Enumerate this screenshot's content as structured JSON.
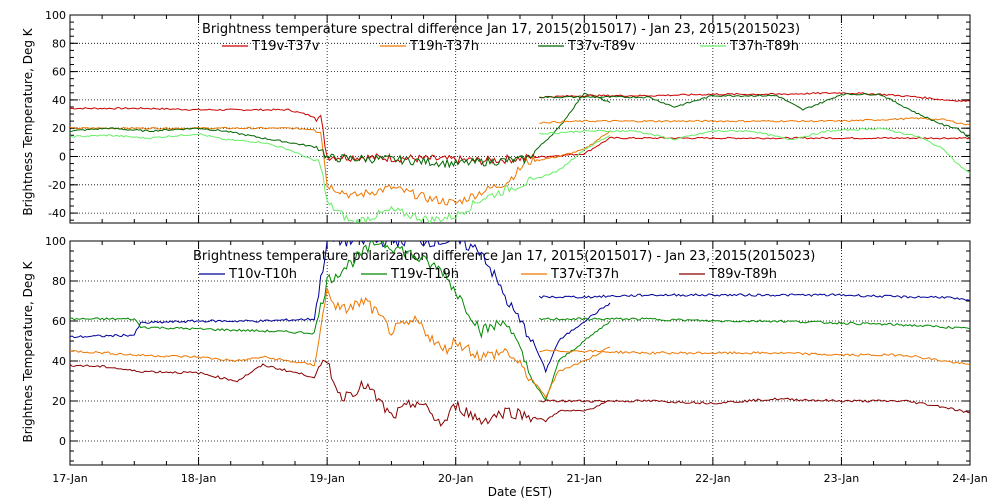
{
  "chart_data": [
    {
      "type": "line",
      "title": "Brightness temperature spectral difference      Jan 17, 2015(2015017) - Jan 23, 2015(2015023)",
      "ylabel": "Brightness Temperature, Deg K",
      "xlabel": "",
      "ylim": [
        -47,
        100
      ],
      "yticks": [
        -40,
        -20,
        0,
        20,
        40,
        60,
        80,
        100
      ],
      "ytick_labels": [
        "-40",
        "-20",
        "0",
        "20",
        "40",
        "60",
        "80",
        "100"
      ],
      "grid": true,
      "legend": "top",
      "series": [
        {
          "name": "T19v-T37v",
          "color": "#cc0000",
          "x": [
            0,
            0.3,
            0.6,
            1.0,
            1.4,
            1.7,
            1.95,
            2.0,
            2.5,
            2.9,
            3.2,
            3.55,
            4.0,
            4.2,
            4.3,
            4.5,
            4.8,
            5.5,
            6.0,
            6.3,
            6.6,
            6.9,
            7.0
          ],
          "y": [
            34,
            34,
            34,
            33,
            33,
            33,
            27,
            0,
            -1,
            -2,
            -3,
            -1,
            2,
            13,
            13,
            13,
            13,
            13,
            13,
            13,
            13,
            13,
            13
          ],
          "segments": [
            [
              0,
              4.4
            ],
            [
              4.4,
              7.0
            ]
          ]
        },
        {
          "name": "T19h-T37h",
          "color": "#ee7700",
          "x": [
            0,
            0.3,
            0.6,
            1.0,
            1.4,
            1.7,
            1.95,
            2.0,
            2.2,
            2.5,
            2.8,
            3.0,
            3.2,
            3.4,
            3.55,
            3.8,
            4.0,
            4.2
          ],
          "y": [
            20,
            20,
            20,
            20,
            20,
            20,
            19,
            -20,
            -28,
            -22,
            -30,
            -33,
            -25,
            -18,
            -4,
            0,
            5,
            18
          ],
          "segments": [
            [
              0,
              4.2
            ]
          ]
        },
        {
          "name": "T37v-T89v",
          "color": "#006600",
          "x": [
            0,
            0.3,
            0.6,
            1.0,
            1.2,
            1.5,
            1.7,
            1.95,
            2.0,
            2.5,
            3.0,
            3.55,
            3.8,
            4.0,
            4.1,
            4.2
          ],
          "y": [
            18,
            20,
            18,
            20,
            18,
            13,
            10,
            6,
            -1,
            -2,
            -5,
            -2,
            20,
            45,
            42,
            38
          ],
          "segments": [
            [
              0,
              4.2
            ]
          ]
        },
        {
          "name": "T37h-T89h",
          "color": "#66ee66",
          "x": [
            0,
            0.3,
            0.6,
            1.0,
            1.2,
            1.5,
            1.7,
            1.95,
            2.0,
            2.2,
            2.5,
            2.8,
            3.0,
            3.2,
            3.5,
            3.8,
            4.0,
            4.2
          ],
          "y": [
            14,
            15,
            13,
            16,
            12,
            10,
            5,
            -5,
            -33,
            -47,
            -38,
            -45,
            -42,
            -30,
            -20,
            -10,
            5,
            15
          ],
          "segments": [
            [
              0,
              4.2
            ]
          ]
        }
      ],
      "series_part2": [
        {
          "name": "T19v-T37v",
          "color": "#cc0000",
          "x": [
            3.65,
            4.0,
            4.5,
            5.0,
            5.5,
            6.0,
            6.3,
            6.6,
            6.8,
            7.0
          ],
          "y": [
            42,
            43,
            43,
            44,
            44,
            45,
            44,
            42,
            40,
            39
          ]
        },
        {
          "name": "T19h-T37h",
          "color": "#ee7700",
          "x": [
            3.65,
            4.0,
            4.5,
            5.0,
            5.5,
            6.0,
            6.3,
            6.6,
            6.8,
            7.0
          ],
          "y": [
            24,
            25,
            25,
            25,
            25,
            25,
            26,
            27,
            26,
            22
          ]
        },
        {
          "name": "T37v-T89v",
          "color": "#006600",
          "x": [
            3.65,
            4.0,
            4.5,
            4.7,
            5.0,
            5.5,
            5.7,
            5.9,
            6.0,
            6.3,
            6.6,
            6.8,
            6.9,
            7.0
          ],
          "y": [
            42,
            42,
            42,
            35,
            43,
            43,
            33,
            40,
            44,
            44,
            30,
            22,
            20,
            13
          ]
        },
        {
          "name": "T37h-T89h",
          "color": "#66ee66",
          "x": [
            3.65,
            4.0,
            4.4,
            4.7,
            5.0,
            5.3,
            5.6,
            5.9,
            6.3,
            6.6,
            6.8,
            6.9,
            7.0
          ],
          "y": [
            16,
            18,
            18,
            12,
            18,
            18,
            12,
            18,
            20,
            14,
            5,
            -5,
            -12
          ]
        }
      ]
    },
    {
      "type": "line",
      "title": "Brightness temperature polarization difference      Jan 17, 2015(2015017) - Jan 23, 2015(2015023)",
      "ylabel": "Brightnes Temperature, Deg K",
      "xlabel": "Date (EST)",
      "ylim": [
        -12,
        100
      ],
      "yticks": [
        0,
        20,
        40,
        60,
        80,
        100
      ],
      "ytick_labels": [
        "0",
        "20",
        "40",
        "60",
        "80",
        "100"
      ],
      "categories": [
        "17-Jan",
        "18-Jan",
        "19-Jan",
        "20-Jan",
        "21-Jan",
        "22-Jan",
        "23-Jan",
        "24-Jan"
      ],
      "grid": true,
      "legend": "top",
      "series": [
        {
          "name": "T10v-T10h",
          "color": "#000099",
          "x": [
            0,
            0.5,
            0.55,
            1.0,
            1.5,
            1.9,
            2.0,
            2.1,
            2.4,
            2.6,
            2.9,
            3.0,
            3.2,
            3.4,
            3.5,
            3.6,
            3.7,
            3.8,
            4.0,
            4.2
          ],
          "y": [
            52,
            53,
            59,
            60,
            60,
            61,
            100,
            100,
            100,
            100,
            100,
            100,
            95,
            70,
            60,
            50,
            35,
            50,
            60,
            69
          ]
        },
        {
          "name": "T19v-T19h",
          "color": "#008800",
          "x": [
            0,
            0.5,
            0.55,
            1.0,
            1.5,
            1.9,
            2.0,
            2.1,
            2.4,
            2.6,
            2.9,
            3.0,
            3.2,
            3.4,
            3.6,
            3.7,
            3.8,
            4.0,
            4.2
          ],
          "y": [
            61,
            61,
            57,
            56,
            55,
            54,
            80,
            85,
            100,
            95,
            85,
            75,
            55,
            60,
            30,
            20,
            40,
            50,
            60
          ]
        },
        {
          "name": "T37v-T37h",
          "color": "#ee7700",
          "x": [
            0,
            0.3,
            0.5,
            1.0,
            1.3,
            1.5,
            1.9,
            2.0,
            2.1,
            2.3,
            2.5,
            2.7,
            2.9,
            3.0,
            3.2,
            3.4,
            3.6,
            3.7,
            3.8,
            4.0,
            4.2
          ],
          "y": [
            45,
            44,
            43,
            42,
            40,
            42,
            38,
            75,
            65,
            70,
            55,
            60,
            45,
            50,
            42,
            45,
            30,
            22,
            35,
            40,
            47
          ]
        },
        {
          "name": "T89v-T89h",
          "color": "#880000",
          "x": [
            0,
            0.3,
            0.5,
            1.0,
            1.3,
            1.5,
            1.9,
            2.0,
            2.1,
            2.3,
            2.5,
            2.7,
            2.9,
            3.0,
            3.2,
            3.4,
            3.6,
            3.7,
            3.8,
            4.0,
            4.2
          ],
          "y": [
            38,
            37,
            35,
            34,
            30,
            38,
            32,
            40,
            22,
            28,
            12,
            20,
            8,
            18,
            10,
            15,
            12,
            10,
            15,
            15,
            20
          ]
        }
      ],
      "series_part2": [
        {
          "name": "T10v-T10h",
          "color": "#000099",
          "x": [
            3.65,
            4.0,
            4.5,
            5.0,
            5.5,
            6.0,
            6.5,
            6.8,
            7.0
          ],
          "y": [
            72,
            72,
            73,
            73,
            73,
            73,
            72,
            72,
            70
          ]
        },
        {
          "name": "T19v-T19h",
          "color": "#008800",
          "x": [
            3.65,
            4.0,
            4.5,
            5.0,
            5.5,
            6.0,
            6.5,
            6.8,
            7.0
          ],
          "y": [
            61,
            61,
            61,
            60,
            60,
            59,
            58,
            57,
            56
          ]
        },
        {
          "name": "T37v-T37h",
          "color": "#ee7700",
          "x": [
            3.65,
            4.0,
            4.5,
            5.0,
            5.5,
            6.0,
            6.5,
            6.8,
            7.0
          ],
          "y": [
            45,
            45,
            44,
            44,
            44,
            43,
            43,
            40,
            38
          ]
        },
        {
          "name": "T89v-T89h",
          "color": "#880000",
          "x": [
            3.65,
            4.0,
            4.5,
            5.0,
            5.5,
            6.0,
            6.5,
            6.8,
            7.0
          ],
          "y": [
            20,
            20,
            20,
            19,
            21,
            20,
            20,
            17,
            14
          ]
        }
      ]
    }
  ]
}
